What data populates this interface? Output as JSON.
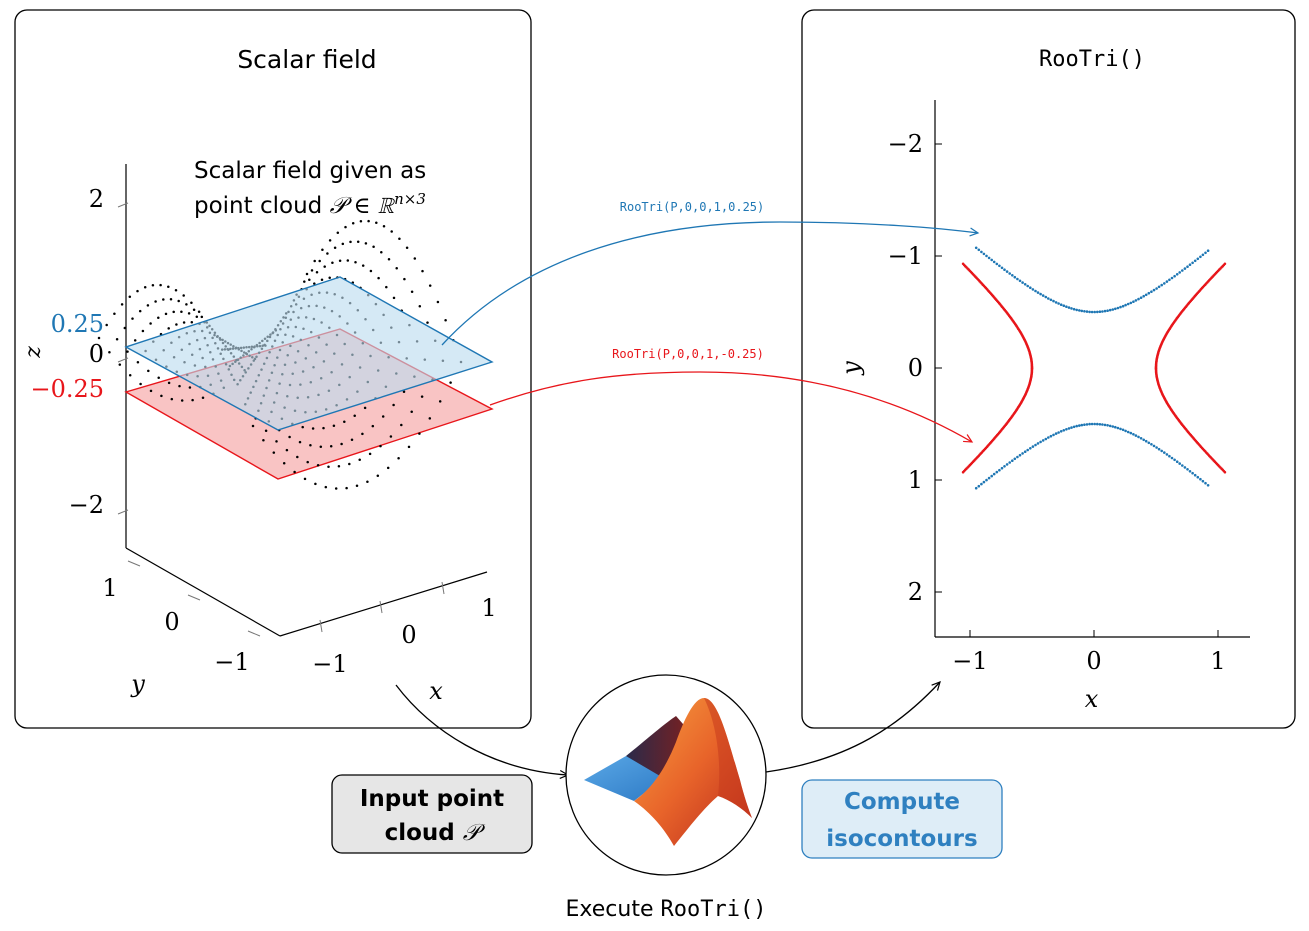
{
  "left_panel": {
    "title": "Scalar field",
    "annotation_line1": "Scalar field given as",
    "annotation_line2_prefix": "point cloud ",
    "annotation_math": "𝒫 ∈ ℝ",
    "annotation_sup": "n×3",
    "level_pos": "0.25",
    "level_neg": "−0.25",
    "z_label": "z",
    "x_label": "x",
    "y_label": "y",
    "z_ticks": [
      "2",
      "0",
      "−2"
    ],
    "x_ticks": [
      "−1",
      "0",
      "1"
    ],
    "y_ticks": [
      "1",
      "0",
      "−1"
    ]
  },
  "right_panel": {
    "title": "RooTri()",
    "x_label": "x",
    "y_label": "y",
    "y_ticks": [
      "2",
      "1",
      "0",
      "−1",
      "−2"
    ],
    "x_ticks": [
      "−1",
      "0",
      "1"
    ]
  },
  "arrows": {
    "call_pos": "RooTri(P,0,0,1,0.25)",
    "call_neg": "RooTri(P,0,0,1,-0.25)"
  },
  "bottom": {
    "input_box_line1": "Input point",
    "input_box_line2_prefix": "cloud ",
    "input_box_math": "𝒫",
    "compute_box_line1": "Compute",
    "compute_box_line2": "isocontours",
    "execute_prefix": "Execute ",
    "execute_code": "RooTri()"
  },
  "colors": {
    "blue": "#1f77b4",
    "red": "#e8161b",
    "plane_blue_fill": "#bcdcef",
    "plane_red_fill": "#f7b3b3",
    "input_box_fill": "#e6e6e6",
    "compute_box_fill": "#deedf7",
    "compute_text": "#2f80c0"
  },
  "icons": {
    "logo": "matlab-membrane-logo"
  },
  "chart_data": {
    "type": "scatter",
    "title": "RooTri()",
    "xlabel": "x",
    "ylabel": "y",
    "xlim": [
      -1.25,
      1.25
    ],
    "ylim": [
      -2.4,
      2.4
    ],
    "xticks": [
      -1,
      0,
      1
    ],
    "yticks": [
      -2,
      -1,
      0,
      1,
      2
    ],
    "grid": false,
    "series": [
      {
        "color": "#1f77b4",
        "relation": "y^2 - x^2 = 0.25",
        "x": [
          -0.95,
          -0.8,
          -0.6,
          -0.4,
          -0.2,
          0,
          0.2,
          0.4,
          0.6,
          0.8,
          0.92
        ],
        "y": [
          1.23,
          0.94,
          0.78,
          0.64,
          0.54,
          0.5,
          0.54,
          0.64,
          0.78,
          0.94,
          1.23
        ]
      },
      {
        "color": "#1f77b4",
        "relation": "y^2 - x^2 = 0.25",
        "x": [
          -0.95,
          -0.8,
          -0.6,
          -0.4,
          -0.2,
          0,
          0.2,
          0.4,
          0.6,
          0.8,
          0.92
        ],
        "y": [
          -1.25,
          -0.94,
          -0.78,
          -0.64,
          -0.54,
          -0.5,
          -0.54,
          -0.64,
          -0.78,
          -0.94,
          -1.25
        ]
      },
      {
        "color": "#e8161b",
        "relation": "x^2 - y^2 = 0.25",
        "x": [
          -1.25,
          -1.0,
          -0.8,
          -0.6,
          -0.52,
          -0.5
        ],
        "y": [
          0.93,
          0.87,
          0.62,
          0.33,
          0.14,
          0
        ]
      },
      {
        "color": "#e8161b",
        "relation": "x^2 - y^2 = 0.25",
        "x": [
          -1.25,
          -1.0,
          -0.8,
          -0.6,
          -0.52,
          -0.5
        ],
        "y": [
          -0.93,
          -0.87,
          -0.62,
          -0.33,
          -0.14,
          0
        ]
      },
      {
        "color": "#e8161b",
        "relation": "x^2 - y^2 = 0.25",
        "x": [
          0.5,
          0.52,
          0.6,
          0.8,
          1.0,
          1.25
        ],
        "y": [
          0,
          0.14,
          0.33,
          0.62,
          0.87,
          0.93
        ]
      },
      {
        "color": "#e8161b",
        "relation": "x^2 - y^2 = 0.25",
        "x": [
          0.5,
          0.52,
          0.6,
          0.8,
          1.0,
          1.25
        ],
        "y": [
          0,
          -0.14,
          -0.33,
          -0.62,
          -0.87,
          -0.93
        ]
      }
    ]
  }
}
